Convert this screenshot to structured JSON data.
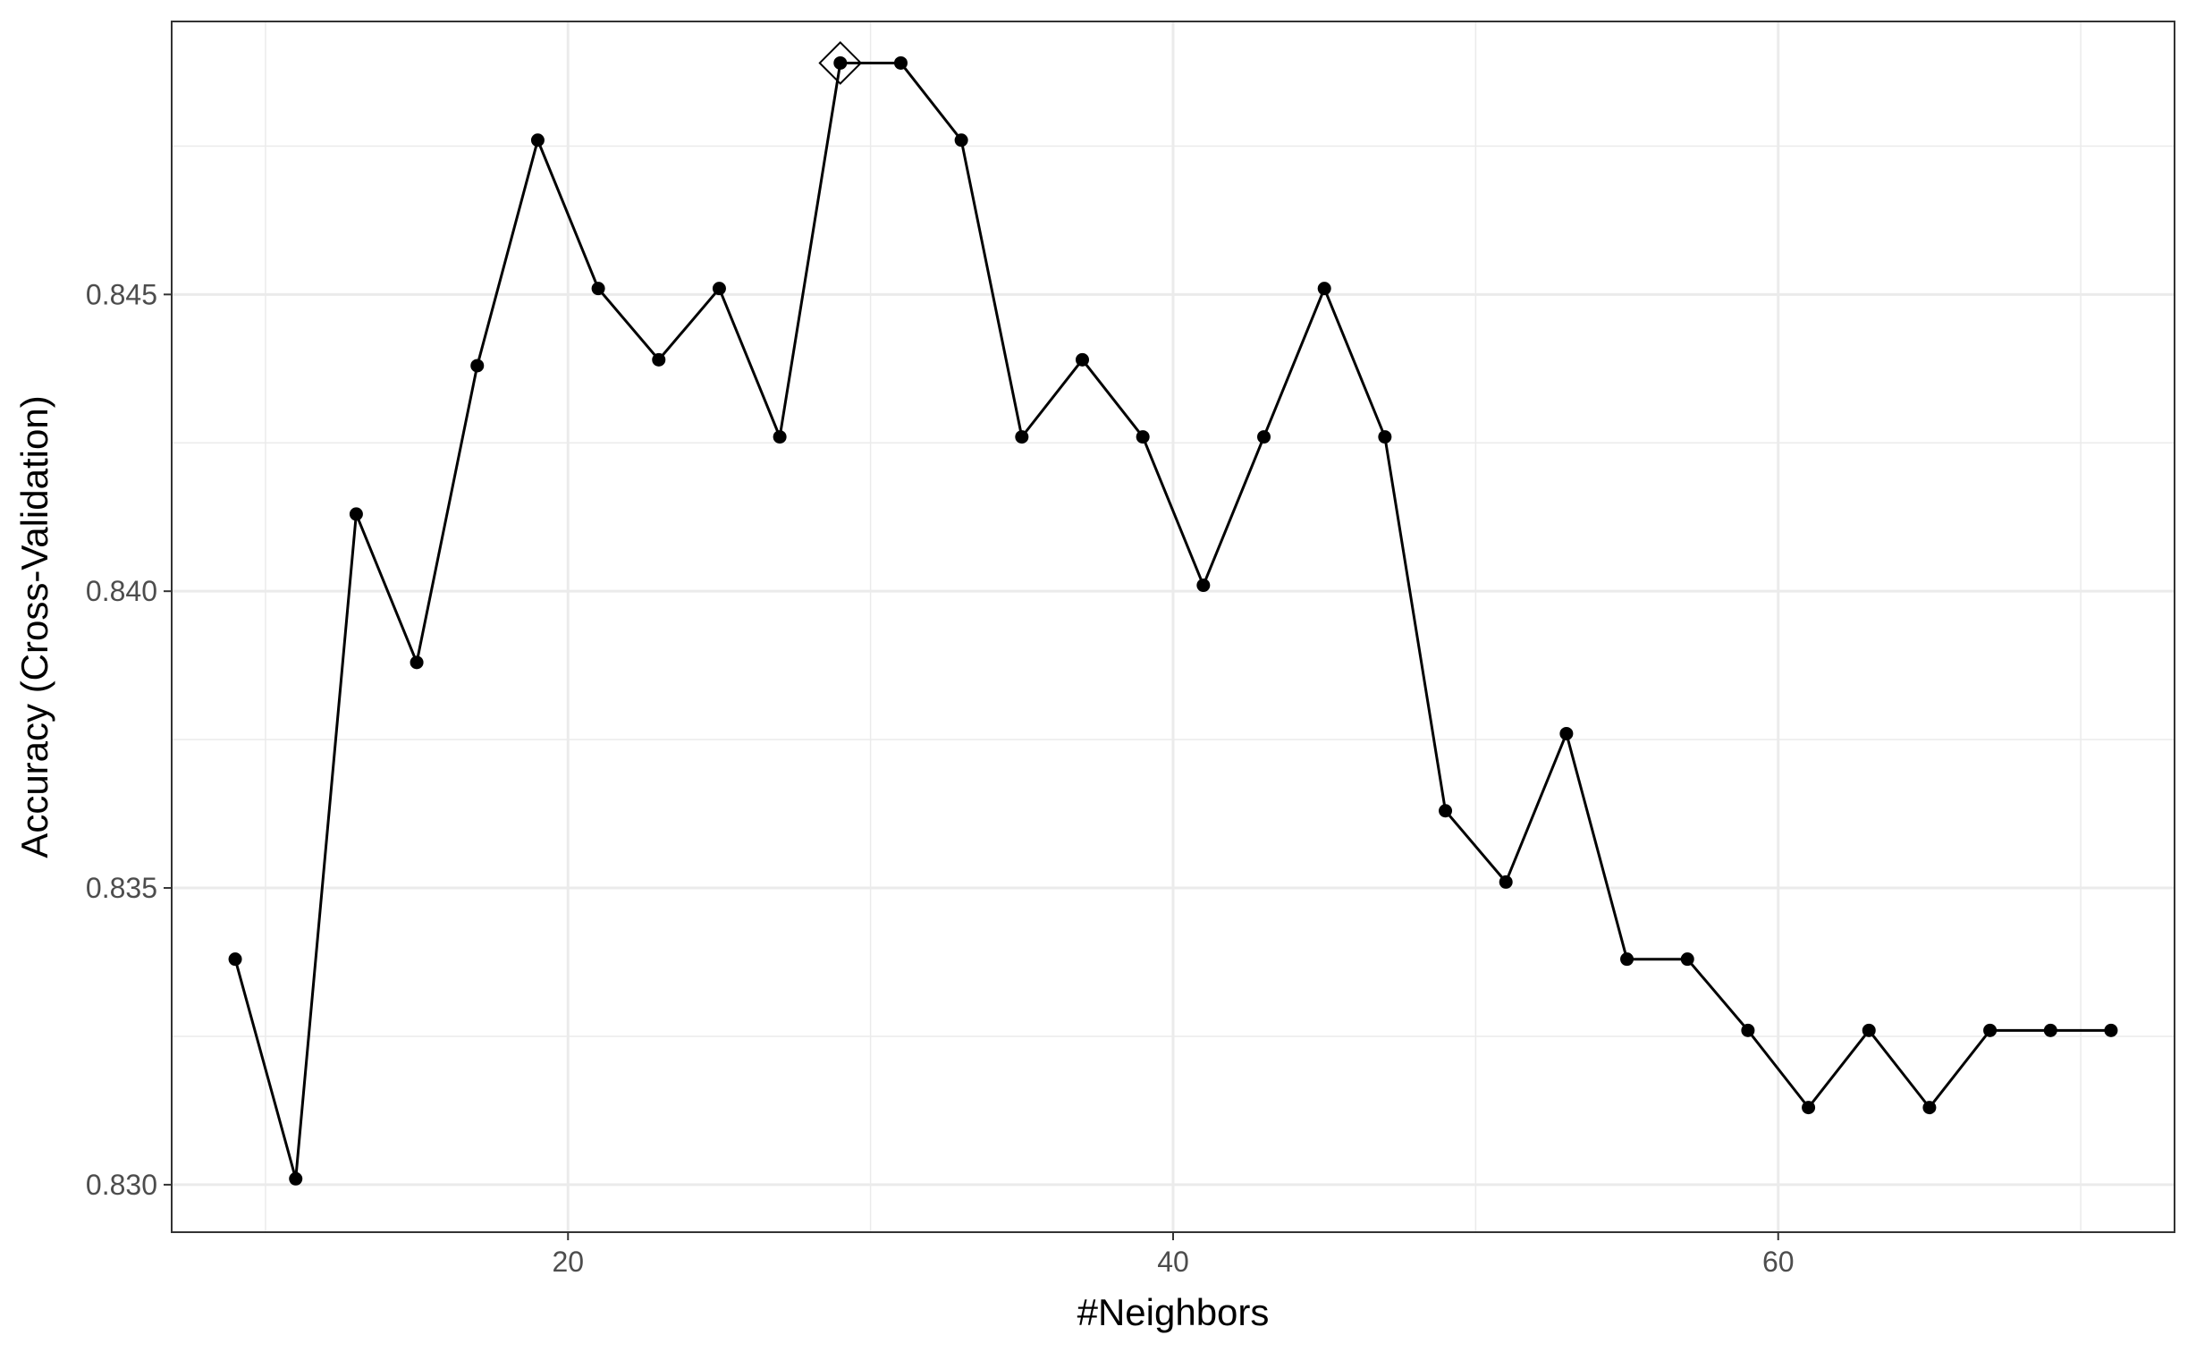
{
  "chart_data": {
    "type": "line",
    "title": "",
    "xlabel": "#Neighbors",
    "ylabel": "Accuracy (Cross-Validation)",
    "xlim": [
      6.9,
      73.1
    ],
    "ylim": [
      0.8292,
      0.8496
    ],
    "x_ticks": [
      20,
      40,
      60
    ],
    "x_tick_labels": [
      "20",
      "40",
      "60"
    ],
    "x_minor_ticks": [
      10,
      30,
      50,
      70
    ],
    "y_ticks": [
      0.83,
      0.835,
      0.84,
      0.845
    ],
    "y_tick_labels": [
      "0.830",
      "0.835",
      "0.840",
      "0.845"
    ],
    "y_minor_ticks": [
      0.8325,
      0.8375,
      0.8425,
      0.8475
    ],
    "grid": true,
    "legend": "none",
    "colors": {
      "line": "#000000",
      "points": "#000000",
      "grid": "#ebebeb",
      "border": "#333333",
      "tick_label": "#4d4d4d",
      "axis_title": "#000000"
    },
    "series": [
      {
        "x": [
          9,
          11,
          13,
          15,
          17,
          19,
          21,
          23,
          25,
          27,
          29,
          31,
          33,
          35,
          37,
          39,
          41,
          43,
          45,
          47,
          49,
          51,
          53,
          55,
          57,
          59,
          61,
          63,
          65,
          67,
          69,
          71
        ],
        "values": [
          0.8338,
          0.8301,
          0.8413,
          0.8388,
          0.8438,
          0.8476,
          0.8451,
          0.8439,
          0.8451,
          0.8426,
          0.8489,
          0.8489,
          0.8476,
          0.8426,
          0.8439,
          0.8426,
          0.8401,
          0.8426,
          0.8451,
          0.8426,
          0.8363,
          0.8351,
          0.8376,
          0.8338,
          0.8338,
          0.8326,
          0.8313,
          0.8326,
          0.8313,
          0.8326,
          0.8326,
          0.8326
        ]
      }
    ],
    "best_point": {
      "x": 29,
      "y": 0.8489
    }
  }
}
